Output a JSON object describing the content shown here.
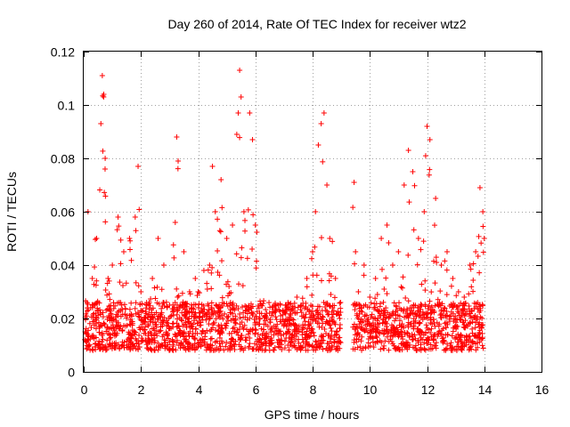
{
  "chart_data": {
    "type": "scatter",
    "title": "Day 260 of 2014, Rate Of TEC Index for receiver wtz2",
    "xlabel": "GPS time / hours",
    "ylabel": "ROTI / TECUs",
    "xlim": [
      0,
      16
    ],
    "ylim": [
      0,
      0.12
    ],
    "x_ticks": [
      0,
      2,
      4,
      6,
      8,
      10,
      12,
      14,
      16
    ],
    "y_ticks": [
      0,
      0.02,
      0.04,
      0.06,
      0.08,
      0.1,
      0.12
    ],
    "x_tick_labels": [
      "0",
      "2",
      "4",
      "6",
      "8",
      "10",
      "12",
      "14",
      "16"
    ],
    "y_tick_labels": [
      "0",
      "0.02",
      "0.04",
      "0.06",
      "0.08",
      "0.1",
      "0.12"
    ],
    "grid": true,
    "marker": "+",
    "color": "#ff0000",
    "data_gap_hours": [
      9.0,
      9.4
    ],
    "series": [
      {
        "name": "wtz2",
        "x": [
          0.05,
          0.15,
          0.3,
          0.45,
          0.6,
          0.65,
          0.7,
          0.75,
          0.85,
          1.0,
          1.2,
          1.4,
          1.6,
          1.8,
          1.9,
          2.0,
          2.2,
          2.4,
          2.6,
          2.8,
          3.0,
          3.2,
          3.25,
          3.3,
          3.5,
          3.7,
          3.9,
          4.0,
          4.2,
          4.4,
          4.5,
          4.6,
          4.8,
          5.0,
          5.2,
          5.35,
          5.4,
          5.45,
          5.5,
          5.6,
          5.8,
          5.9,
          6.0,
          6.2,
          6.4,
          6.6,
          6.8,
          7.0,
          7.2,
          7.4,
          7.6,
          7.8,
          8.0,
          8.1,
          8.2,
          8.3,
          8.4,
          8.5,
          8.6,
          8.8,
          8.95,
          9.45,
          9.5,
          9.6,
          9.8,
          10.0,
          10.2,
          10.4,
          10.6,
          10.8,
          11.0,
          11.2,
          11.35,
          11.5,
          11.7,
          11.9,
          12.0,
          12.1,
          12.3,
          12.5,
          12.7,
          12.9,
          13.1,
          13.3,
          13.5,
          13.7,
          13.85,
          13.95,
          14.0
        ],
        "y": [
          0.015,
          0.06,
          0.035,
          0.05,
          0.093,
          0.111,
          0.104,
          0.08,
          0.035,
          0.04,
          0.058,
          0.045,
          0.05,
          0.058,
          0.077,
          0.03,
          0.025,
          0.035,
          0.05,
          0.04,
          0.025,
          0.056,
          0.088,
          0.079,
          0.045,
          0.03,
          0.035,
          0.03,
          0.038,
          0.04,
          0.077,
          0.06,
          0.072,
          0.05,
          0.055,
          0.089,
          0.097,
          0.113,
          0.103,
          0.06,
          0.097,
          0.087,
          0.055,
          0.025,
          0.02,
          0.022,
          0.025,
          0.018,
          0.02,
          0.022,
          0.025,
          0.035,
          0.045,
          0.06,
          0.085,
          0.093,
          0.097,
          0.07,
          0.05,
          0.035,
          0.02,
          0.071,
          0.045,
          0.03,
          0.04,
          0.028,
          0.035,
          0.05,
          0.055,
          0.04,
          0.045,
          0.07,
          0.083,
          0.075,
          0.05,
          0.06,
          0.092,
          0.087,
          0.065,
          0.04,
          0.045,
          0.035,
          0.03,
          0.028,
          0.04,
          0.045,
          0.069,
          0.06,
          0.05
        ]
      }
    ]
  }
}
